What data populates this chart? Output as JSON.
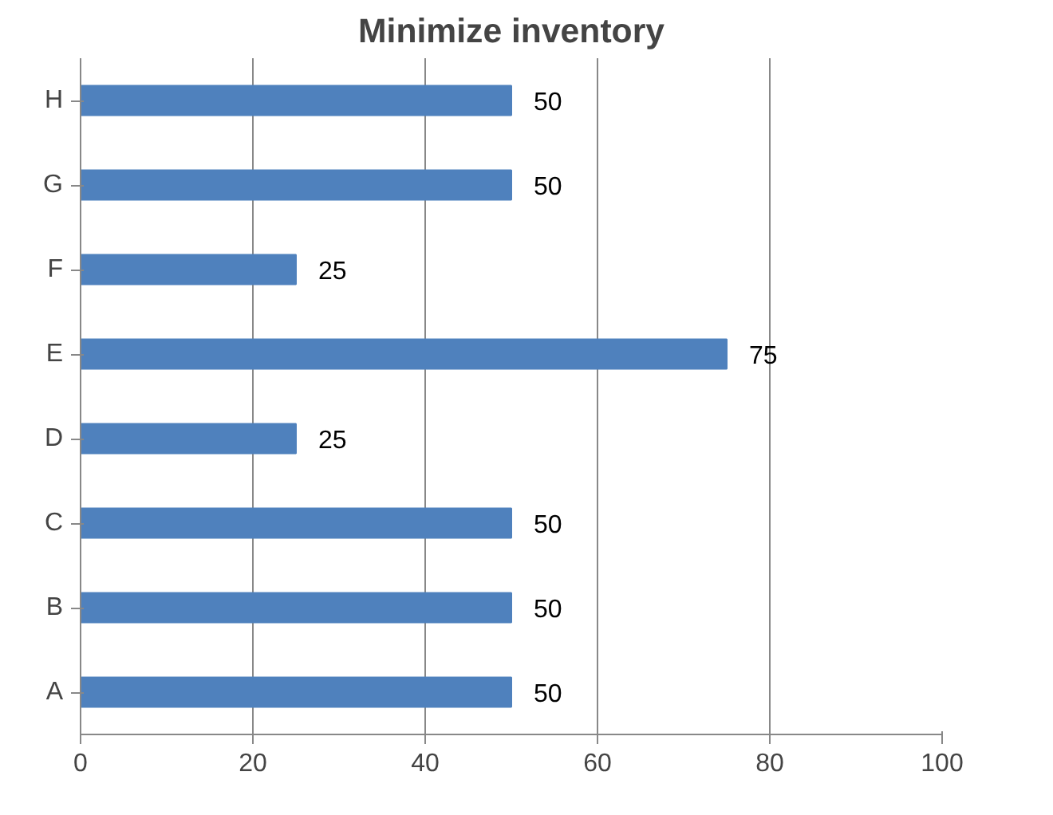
{
  "chart_data": {
    "type": "bar",
    "orientation": "horizontal",
    "title": "Minimize inventory",
    "categories": [
      "H",
      "G",
      "F",
      "E",
      "D",
      "C",
      "B",
      "A"
    ],
    "values": [
      50,
      50,
      25,
      75,
      25,
      50,
      50,
      50
    ],
    "color": "#4f81bd",
    "xlim": [
      0,
      100
    ],
    "xticks": [
      0,
      20,
      40,
      60,
      80,
      100
    ],
    "grid": "x",
    "data_labels": true
  }
}
